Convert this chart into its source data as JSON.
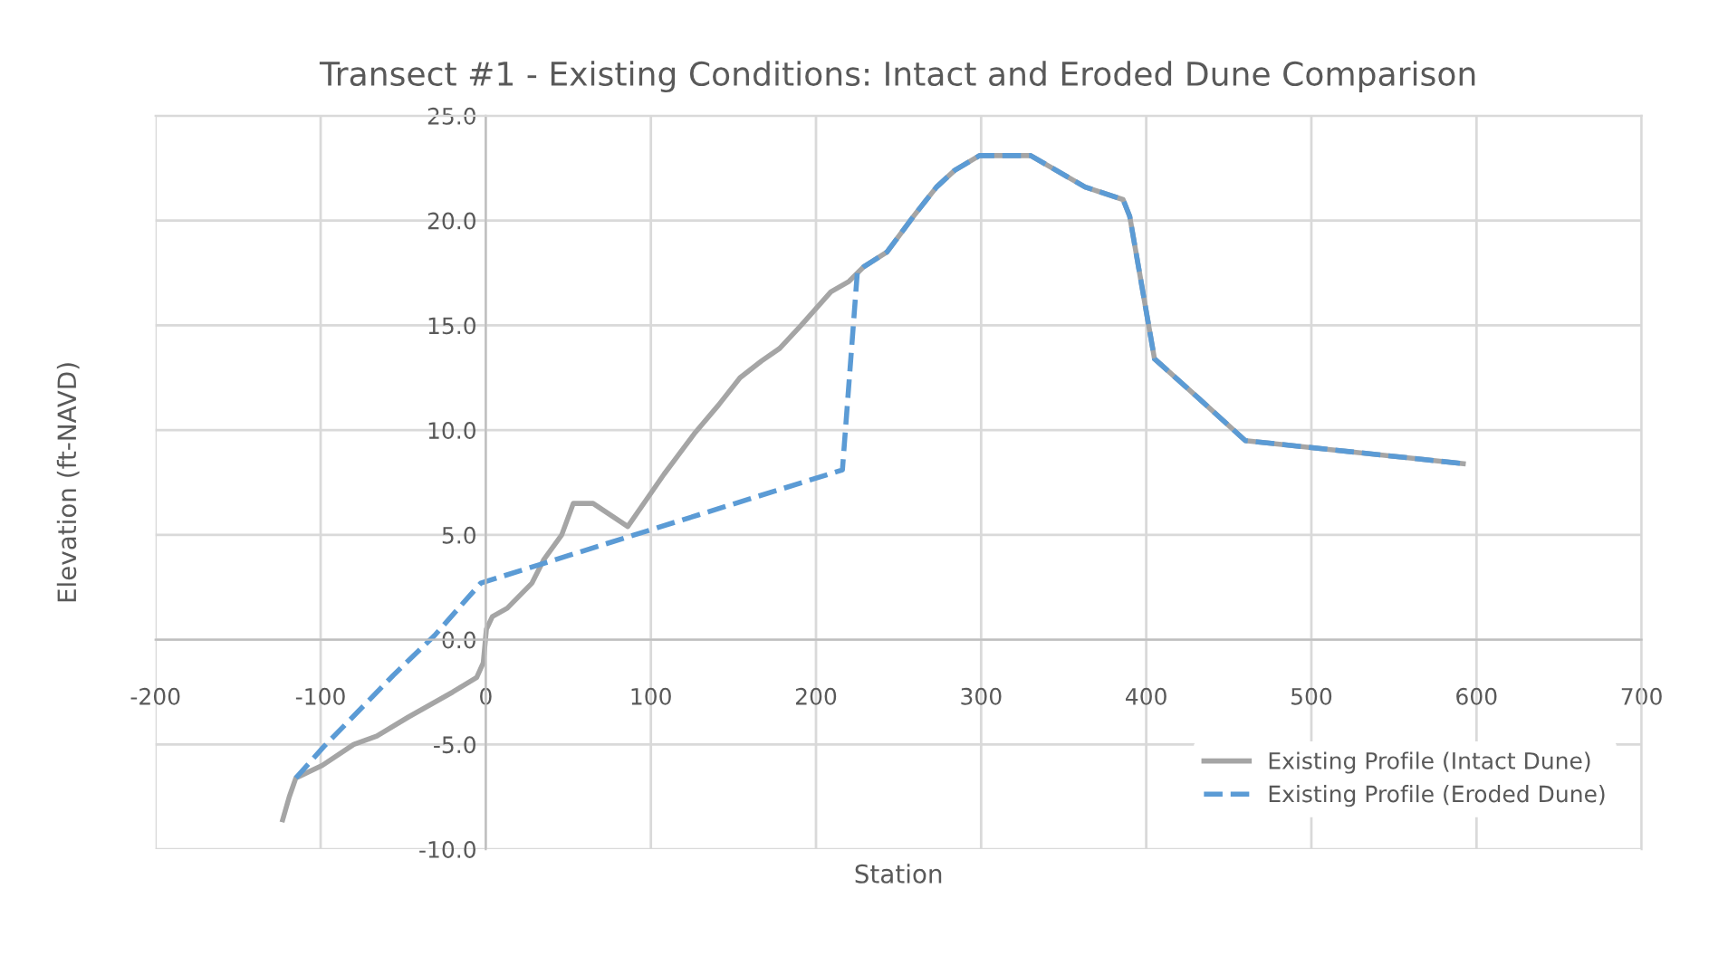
{
  "chart_data": {
    "type": "line",
    "title": "Transect #1 - Existing Conditions: Intact and Eroded Dune Comparison",
    "xlabel": "Station",
    "ylabel": "Elevation (ft-NAVD)",
    "series": [
      {
        "name": "Existing Profile (Intact Dune)",
        "color": "#a5a5a5",
        "line_style": "solid",
        "x": [
          -123,
          -119,
          -115,
          -99,
          -80,
          -66,
          -47,
          -20,
          -5.5,
          -1.5,
          0.4,
          4,
          13,
          28,
          35,
          46,
          53,
          65,
          86,
          108,
          127,
          141,
          154,
          167,
          178,
          191,
          209,
          220,
          229,
          243,
          260,
          273,
          284,
          299,
          330,
          363,
          386,
          390,
          405,
          432,
          460,
          592
        ],
        "values": [
          -8.6,
          -7.5,
          -6.6,
          -6.0,
          -5.0,
          -4.6,
          -3.7,
          -2.5,
          -1.8,
          -1.1,
          0.5,
          1.1,
          1.5,
          2.7,
          3.8,
          5.0,
          6.5,
          6.5,
          5.4,
          7.9,
          9.9,
          11.2,
          12.5,
          13.3,
          13.9,
          15.0,
          16.6,
          17.1,
          17.8,
          18.5,
          20.3,
          21.6,
          22.4,
          23.1,
          23.1,
          21.6,
          21.0,
          20.2,
          13.4,
          11.5,
          9.5,
          8.4
        ]
      },
      {
        "name": "Existing Profile (Eroded Dune)",
        "color": "#5b9bd5",
        "line_style": "dashed",
        "x": [
          -115,
          -98,
          -56,
          -31,
          -3,
          86,
          216,
          225,
          229,
          243,
          260,
          273,
          284,
          299,
          330,
          363,
          386,
          390,
          405,
          432,
          460,
          592
        ],
        "values": [
          -6.6,
          -5.1,
          -1.7,
          0.2,
          2.7,
          4.9,
          8.1,
          17.5,
          17.8,
          18.5,
          20.3,
          21.6,
          22.4,
          23.1,
          23.1,
          21.6,
          21.0,
          20.2,
          13.4,
          11.5,
          9.5,
          8.4
        ]
      }
    ],
    "xlim": [
      -200,
      700
    ],
    "xticks": [
      -200,
      -100,
      0,
      100,
      200,
      300,
      400,
      500,
      600,
      700
    ],
    "ylim": [
      -10,
      25
    ],
    "yticks": [
      {
        "value": -10,
        "label": "-10.0"
      },
      {
        "value": -5,
        "label": "-5.0"
      },
      {
        "value": 0,
        "label": "0.0"
      },
      {
        "value": 5,
        "label": "5.0"
      },
      {
        "value": 10,
        "label": "10.0"
      },
      {
        "value": 15,
        "label": "15.0"
      },
      {
        "value": 20,
        "label": "20.0"
      },
      {
        "value": 25,
        "label": "25.0"
      }
    ],
    "grid": true,
    "legend": "bottom right"
  }
}
